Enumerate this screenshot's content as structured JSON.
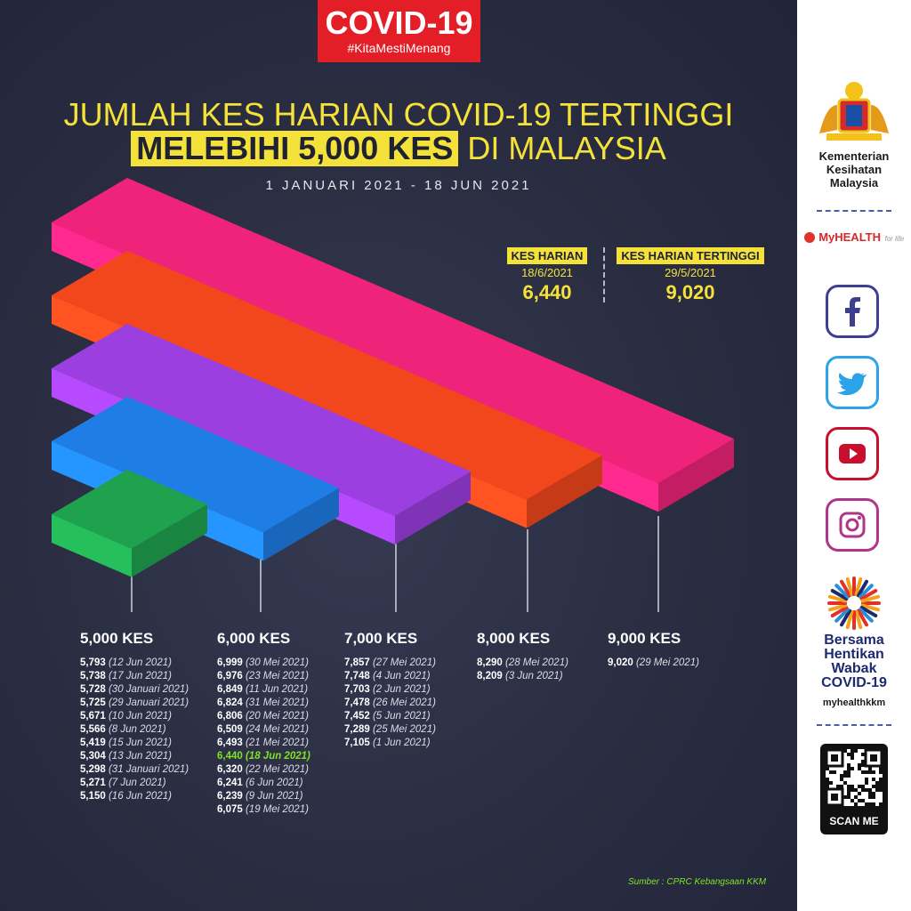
{
  "badge": {
    "title": "COVID-19",
    "hashtag": "#KitaMestiMenang"
  },
  "title": {
    "line1": "JUMLAH KES HARIAN COVID-19 TERTINGGI",
    "highlight": "MELEBIHI 5,000 KES",
    "line2_rest": " DI MALAYSIA",
    "date_range": "1 JANUARI 2021 - 18 JUN 2021"
  },
  "stats": {
    "daily": {
      "label": "KES HARIAN",
      "date": "18/6/2021",
      "value": "6,440"
    },
    "highest": {
      "label": "KES HARIAN TERTINGGI",
      "date": "29/5/2021",
      "value": "9,020"
    }
  },
  "colors": {
    "bar_9000": "#f0237a",
    "bar_8000": "#f2471c",
    "bar_7000": "#9b3fe0",
    "bar_6000": "#1f7ee6",
    "bar_5000": "#1fa24e",
    "accent_yellow": "#f4e23a",
    "highlight_green": "#7fe324"
  },
  "chart_data": {
    "type": "bar",
    "title": "JUMLAH KES HARIAN COVID-19 TERTINGGI MELEBIHI 5,000 KES DI MALAYSIA",
    "categories": [
      "5,000 KES",
      "6,000 KES",
      "7,000 KES",
      "8,000 KES",
      "9,000 KES"
    ],
    "values": [
      5000,
      6000,
      7000,
      8000,
      9000
    ],
    "bar_colors": [
      "#1fa24e",
      "#1f7ee6",
      "#9b3fe0",
      "#f2471c",
      "#f0237a"
    ],
    "groups": [
      {
        "heading": "5,000 KES",
        "entries": [
          {
            "value": "5,793",
            "date": "(12 Jun 2021)"
          },
          {
            "value": "5,738",
            "date": "(17 Jun 2021)"
          },
          {
            "value": "5,728",
            "date": "(30 Januari 2021)"
          },
          {
            "value": "5,725",
            "date": "(29 Januari 2021)"
          },
          {
            "value": "5,671",
            "date": "(10 Jun 2021)"
          },
          {
            "value": "5,566",
            "date": "(8 Jun 2021)"
          },
          {
            "value": "5,419",
            "date": "(15 Jun 2021)"
          },
          {
            "value": "5,304",
            "date": "(13 Jun 2021)"
          },
          {
            "value": "5,298",
            "date": "(31 Januari 2021)"
          },
          {
            "value": "5,271",
            "date": "(7 Jun 2021)"
          },
          {
            "value": "5,150",
            "date": "(16 Jun 2021)"
          }
        ]
      },
      {
        "heading": "6,000 KES",
        "entries": [
          {
            "value": "6,999",
            "date": "(30 Mei 2021)"
          },
          {
            "value": "6,976",
            "date": "(23 Mei 2021)"
          },
          {
            "value": "6,849",
            "date": "(11 Jun 2021)"
          },
          {
            "value": "6,824",
            "date": "(31 Mei 2021)"
          },
          {
            "value": "6,806",
            "date": "(20 Mei 2021)"
          },
          {
            "value": "6,509",
            "date": "(24 Mei 2021)"
          },
          {
            "value": "6,493",
            "date": "(21 Mei 2021)"
          },
          {
            "value": "6,440",
            "date": "(18 Jun 2021)",
            "highlight": true
          },
          {
            "value": "6,320",
            "date": "(22 Mei 2021)"
          },
          {
            "value": "6,241",
            "date": "(6 Jun 2021)"
          },
          {
            "value": "6,239",
            "date": "(9 Jun 2021)"
          },
          {
            "value": "6,075",
            "date": "(19 Mei 2021)"
          }
        ]
      },
      {
        "heading": "7,000 KES",
        "entries": [
          {
            "value": "7,857",
            "date": "(27 Mei 2021)"
          },
          {
            "value": "7,748",
            "date": "(4 Jun 2021)"
          },
          {
            "value": "7,703",
            "date": "(2 Jun 2021)"
          },
          {
            "value": "7,478",
            "date": "(26 Mei 2021)"
          },
          {
            "value": "7,452",
            "date": "(5 Jun 2021)"
          },
          {
            "value": "7,289",
            "date": "(25 Mei 2021)"
          },
          {
            "value": "7,105",
            "date": "(1 Jun 2021)"
          }
        ]
      },
      {
        "heading": "8,000 KES",
        "entries": [
          {
            "value": "8,290",
            "date": "(28 Mei 2021)"
          },
          {
            "value": "8,209",
            "date": "(3 Jun 2021)"
          }
        ]
      },
      {
        "heading": "9,000 KES",
        "entries": [
          {
            "value": "9,020",
            "date": "(29 Mei 2021)"
          }
        ]
      }
    ]
  },
  "source": "Sumber : CPRC Kebangsaan KKM",
  "sidebar": {
    "org_lines": [
      "Kementerian",
      "Kesihatan",
      "Malaysia"
    ],
    "myhealth": "MyHEALTH",
    "myhealth_tag": "for life",
    "campaign_lines": [
      "Bersama",
      "Hentikan",
      "Wabak",
      "COVID-19"
    ],
    "handle": "myhealthkkm",
    "scan_label": "SCAN ME",
    "icons": [
      "facebook-icon",
      "twitter-icon",
      "youtube-icon",
      "instagram-icon"
    ]
  }
}
